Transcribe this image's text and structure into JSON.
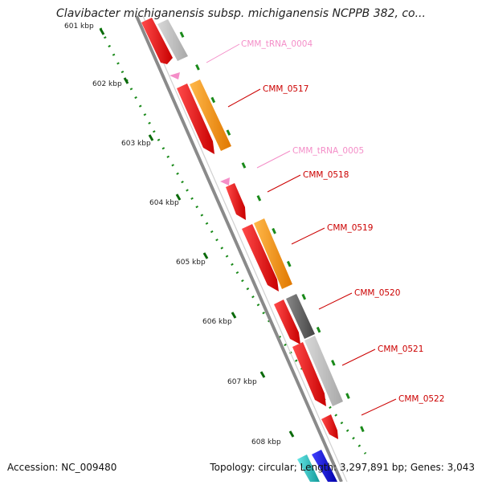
{
  "title": "Clavibacter michiganensis subsp. michiganensis NCPPB 382, co...",
  "ruler": {
    "unit": "kbp",
    "ticks": [
      {
        "label": "601 kbp"
      },
      {
        "label": "602 kbp"
      },
      {
        "label": "603 kbp"
      },
      {
        "label": "604 kbp"
      },
      {
        "label": "605 kbp"
      },
      {
        "label": "606 kbp"
      },
      {
        "label": "607 kbp"
      },
      {
        "label": "608 kbp"
      }
    ]
  },
  "colors": {
    "cds": "#ff0000",
    "trna": "#f48ec8",
    "orange_hit": "#ff9900",
    "gray_hit": "#bbbbbb",
    "dark_gray_hit": "#666666",
    "cyan_hit": "#33cccc",
    "blue_hit": "#0000ee",
    "backbone": "#888888",
    "tick_green": "#006600"
  },
  "features": [
    {
      "name": "CMM_tRNA_0004",
      "type": "tRNA",
      "color": "#f48ec8"
    },
    {
      "name": "CMM_0517",
      "type": "CDS",
      "color": "#dd0000"
    },
    {
      "name": "CMM_tRNA_0005",
      "type": "tRNA",
      "color": "#f48ec8"
    },
    {
      "name": "CMM_0518",
      "type": "CDS",
      "color": "#dd0000"
    },
    {
      "name": "CMM_0519",
      "type": "CDS",
      "color": "#dd0000"
    },
    {
      "name": "CMM_0520",
      "type": "CDS",
      "color": "#dd0000"
    },
    {
      "name": "CMM_0521",
      "type": "CDS",
      "color": "#dd0000"
    },
    {
      "name": "CMM_0522",
      "type": "CDS",
      "color": "#dd0000"
    }
  ],
  "footer": {
    "accession": "Accession: NC_009480",
    "stats": "Topology: circular; Length: 3,297,891 bp; Genes: 3,043"
  }
}
